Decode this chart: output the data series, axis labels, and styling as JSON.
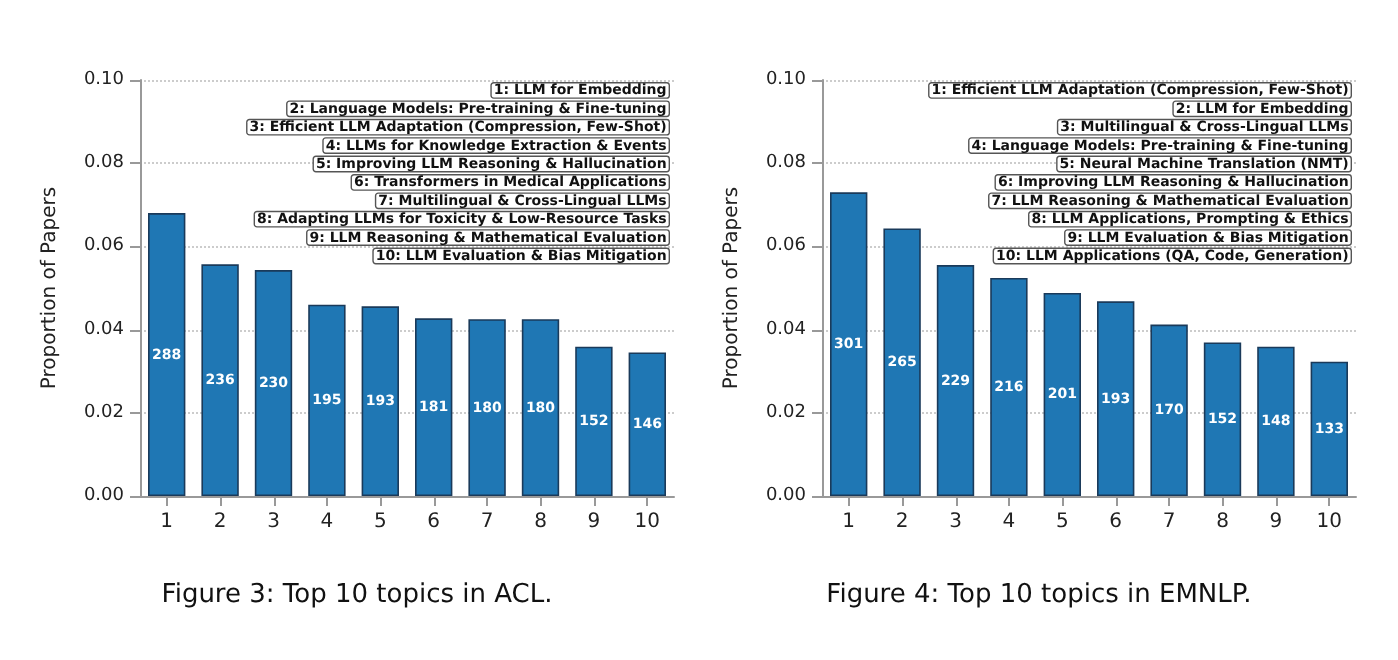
{
  "chart_data": [
    {
      "type": "bar",
      "title": "Figure 3: Top 10 topics in ACL.",
      "ylabel": "Proportion of Papers",
      "categories": [
        "1",
        "2",
        "3",
        "4",
        "5",
        "6",
        "7",
        "8",
        "9",
        "10"
      ],
      "series": [
        {
          "color": "#1f77b4",
          "values": [
            0.068,
            0.0557,
            0.0543,
            0.046,
            0.0456,
            0.0427,
            0.0425,
            0.0425,
            0.0359,
            0.0345
          ]
        }
      ],
      "ylim": [
        0,
        0.1
      ],
      "yticks": [
        {
          "value": 0,
          "label": "0.00"
        },
        {
          "value": 0.02,
          "label": "0.02"
        },
        {
          "value": 0.04,
          "label": "0.04"
        },
        {
          "value": 0.06,
          "label": "0.06"
        },
        {
          "value": 0.08,
          "label": "0.08"
        },
        {
          "value": 0.1,
          "label": "0.10"
        }
      ],
      "grid": "y",
      "annotations": [
        "1: LLM for Embedding",
        "2: Language Models: Pre-training & Fine-tuning",
        "3: Efficient LLM Adaptation (Compression, Few-Shot)",
        "4: LLMs for Knowledge Extraction & Events",
        "5: Improving LLM Reasoning & Hallucination",
        "6: Transformers in Medical Applications",
        "7: Multilingual & Cross-Lingual LLMs",
        "8: Adapting LLMs for Toxicity & Low-Resource Tasks",
        "9: LLM Reasoning & Mathematical Evaluation",
        "10: LLM Evaluation & Bias Mitigation",
        "288",
        "236",
        "230",
        "195",
        "193",
        "181",
        "180",
        "180",
        "152",
        "146"
      ]
    },
    {
      "type": "bar",
      "title": "Figure 4: Top 10 topics in EMNLP.",
      "ylabel": "Proportion of Papers",
      "categories": [
        "1",
        "2",
        "3",
        "4",
        "5",
        "6",
        "7",
        "8",
        "9",
        "10"
      ],
      "series": [
        {
          "color": "#1f77b4",
          "values": [
            0.073,
            0.0643,
            0.0555,
            0.0524,
            0.0488,
            0.0468,
            0.0412,
            0.0369,
            0.0359,
            0.0323
          ]
        }
      ],
      "ylim": [
        0,
        0.1
      ],
      "yticks": [
        {
          "value": 0,
          "label": "0.00"
        },
        {
          "value": 0.02,
          "label": "0.02"
        },
        {
          "value": 0.04,
          "label": "0.04"
        },
        {
          "value": 0.06,
          "label": "0.06"
        },
        {
          "value": 0.08,
          "label": "0.08"
        },
        {
          "value": 0.1,
          "label": "0.10"
        }
      ],
      "grid": "y",
      "annotations": [
        "1: Efficient LLM Adaptation (Compression, Few-Shot)",
        "2: LLM for Embedding",
        "3: Multilingual & Cross-Lingual LLMs",
        "4: Language Models: Pre-training & Fine-tuning",
        "5: Neural Machine Translation (NMT)",
        "6: Improving LLM Reasoning & Hallucination",
        "7: LLM Reasoning & Mathematical Evaluation",
        "8: LLM Applications, Prompting & Ethics",
        "9: LLM Evaluation & Bias Mitigation",
        "10: LLM Applications (QA, Code, Generation)",
        "301",
        "265",
        "229",
        "216",
        "201",
        "193",
        "170",
        "152",
        "148",
        "133"
      ]
    }
  ]
}
